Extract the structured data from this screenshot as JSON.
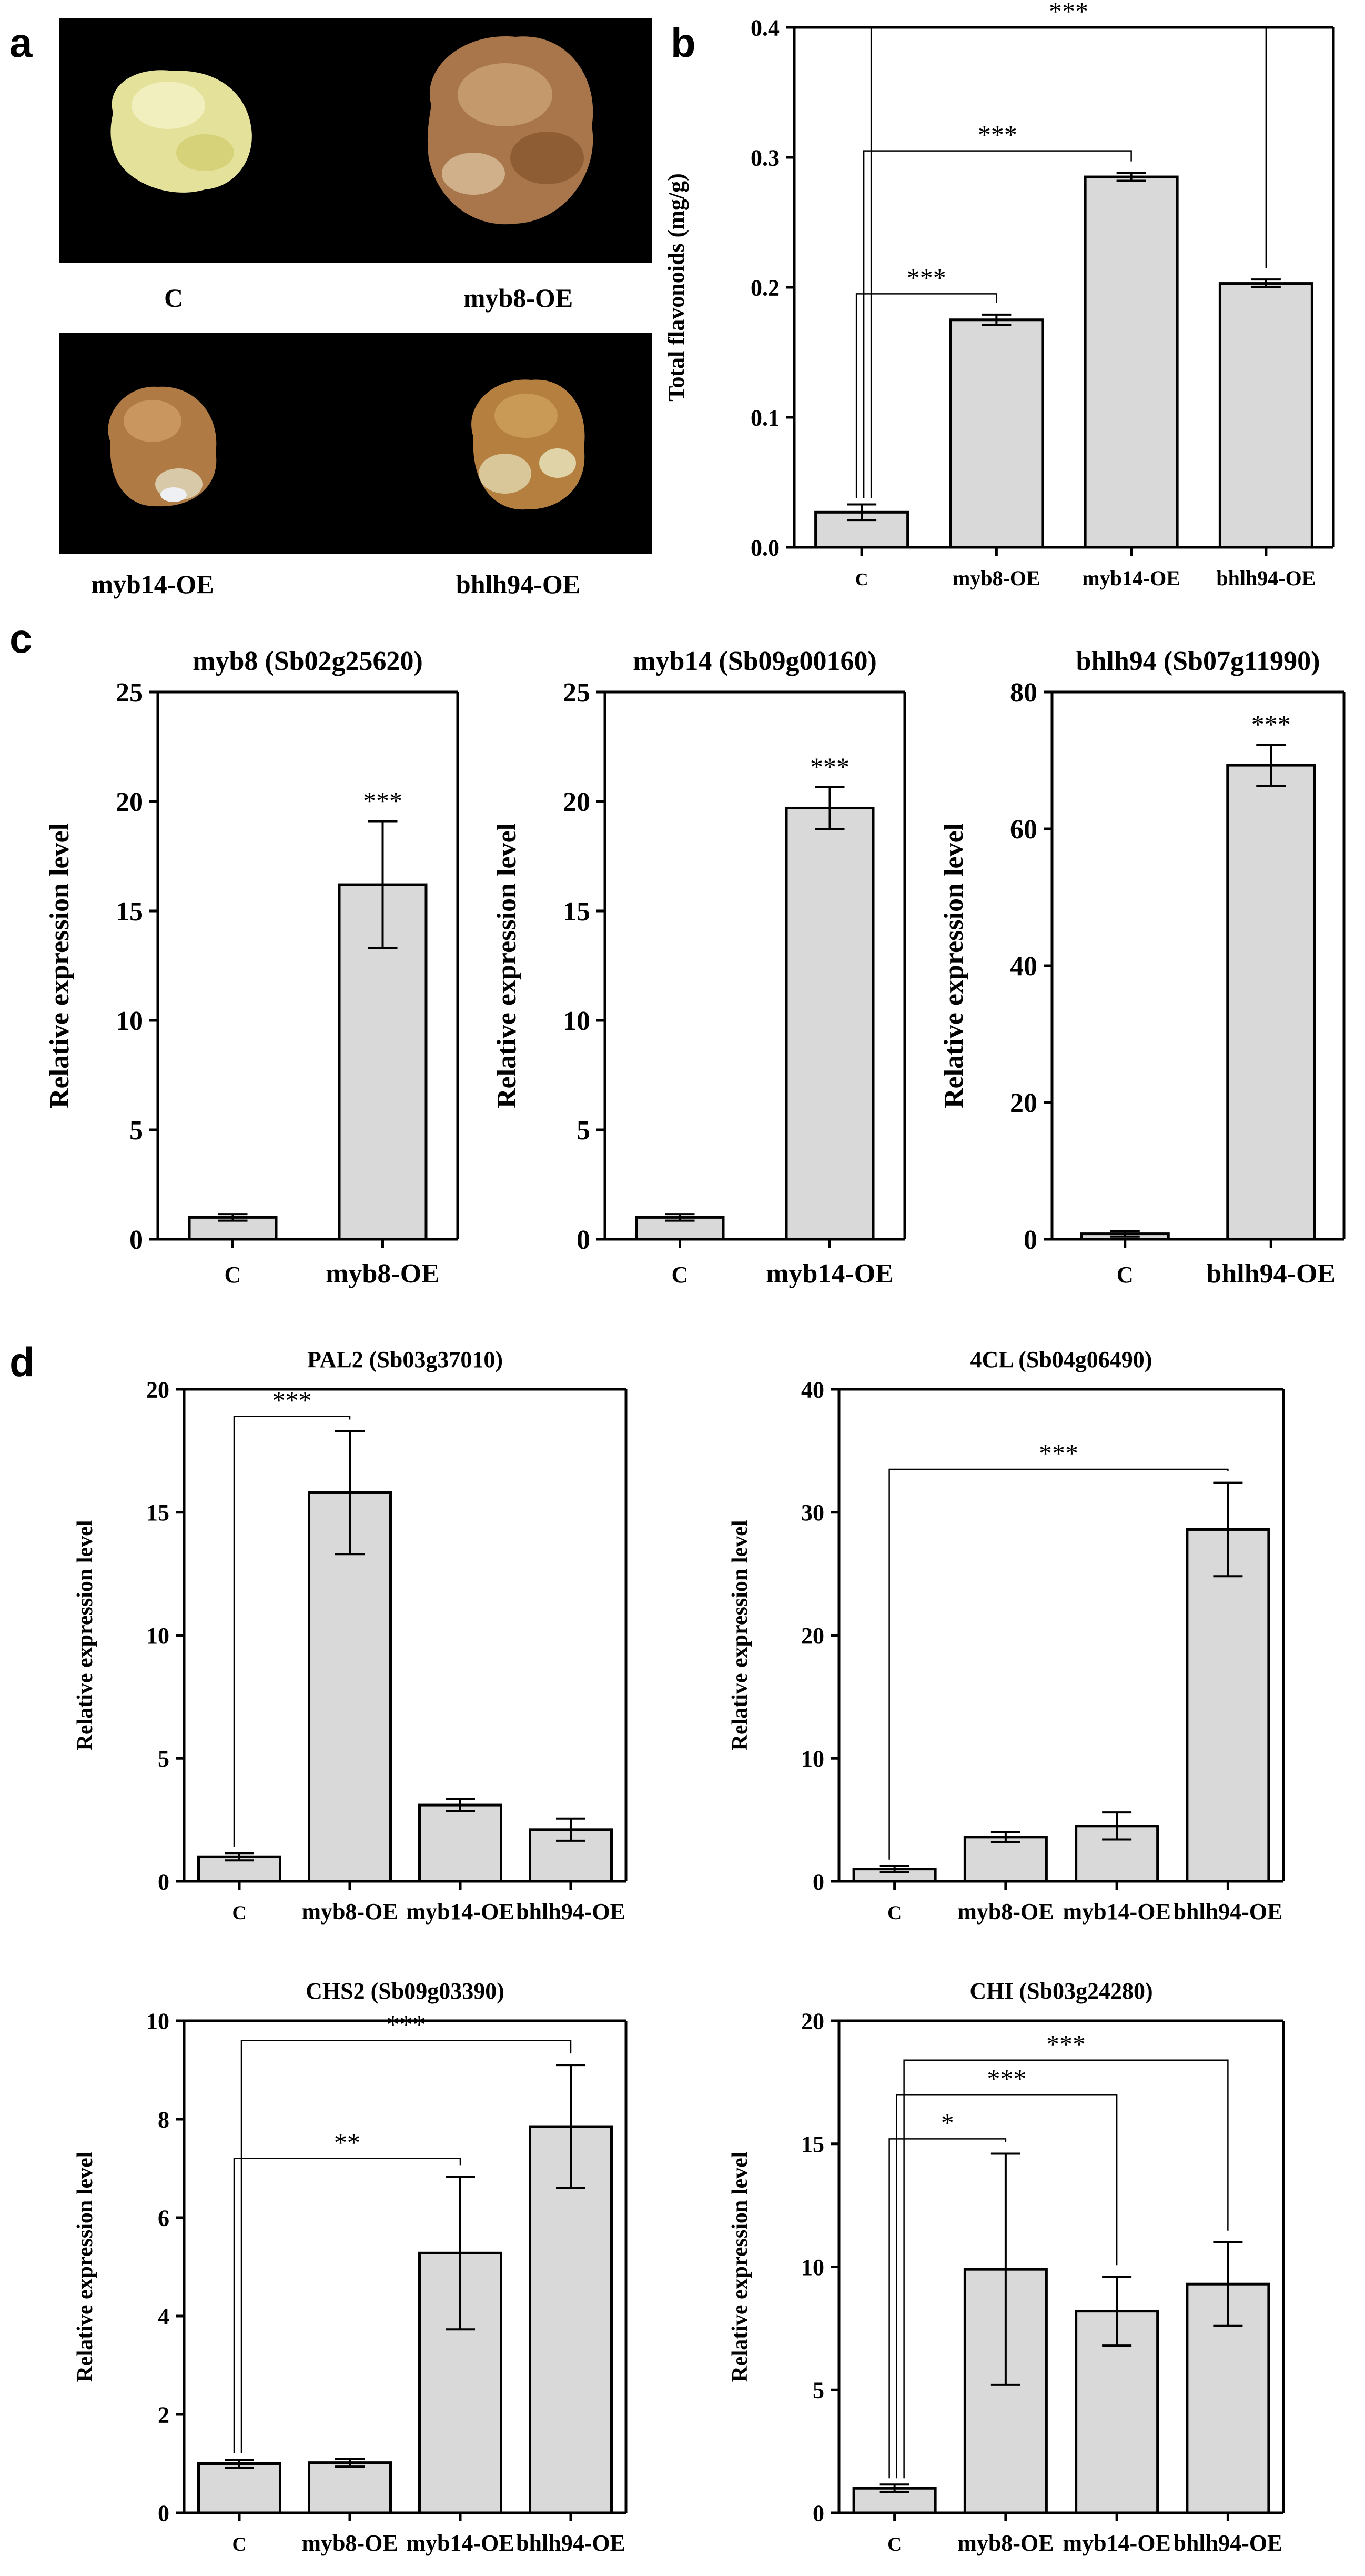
{
  "panel_labels": {
    "a": "a",
    "b": "b",
    "c": "c",
    "d": "d"
  },
  "photos": {
    "background": "#000000",
    "items": [
      {
        "label": "C",
        "callus": "pale-yellow"
      },
      {
        "label": "myb8-OE",
        "callus": "brown"
      },
      {
        "label": "myb14-OE",
        "callus": "brown"
      },
      {
        "label": "bhlh94-OE",
        "callus": "brown"
      }
    ]
  },
  "colors": {
    "bar_fill": "#d9d9d9",
    "stroke": "#000000"
  },
  "chart_data": [
    {
      "id": "b",
      "type": "bar",
      "title": "",
      "xlabel": "",
      "ylabel": "Total flavonoids (mg/g)",
      "ylim": [
        0,
        0.4
      ],
      "yticks": [
        0.0,
        0.1,
        0.2,
        0.3,
        0.4
      ],
      "ytick_labels": [
        "0.0",
        "0.1",
        "0.2",
        "0.3",
        "0.4"
      ],
      "categories": [
        "C",
        "myb8-OE",
        "myb14-OE",
        "bhlh94-OE"
      ],
      "values": [
        0.027,
        0.175,
        0.285,
        0.203
      ],
      "errors": [
        0.006,
        0.004,
        0.003,
        0.003
      ],
      "significance": [
        {
          "from": 0,
          "to": 1,
          "label": "***",
          "y": 0.195
        },
        {
          "from": 0,
          "to": 2,
          "label": "***",
          "y": 0.305
        },
        {
          "from": 0,
          "to": 3,
          "label": "***",
          "y": 0.4
        }
      ]
    },
    {
      "id": "c1",
      "type": "bar",
      "title": "myb8 (Sb02g25620)",
      "xlabel": "",
      "ylabel": "Relative expression level",
      "ylim": [
        0,
        25
      ],
      "yticks": [
        0,
        5,
        10,
        15,
        20,
        25
      ],
      "ytick_labels": [
        "0",
        "5",
        "10",
        "15",
        "20",
        "25"
      ],
      "categories": [
        "C",
        "myb8-OE"
      ],
      "values": [
        1.0,
        16.2
      ],
      "errors": [
        0.15,
        2.9
      ],
      "stars": [
        {
          "index": 1,
          "label": "***"
        }
      ]
    },
    {
      "id": "c2",
      "type": "bar",
      "title": "myb14 (Sb09g00160)",
      "xlabel": "",
      "ylabel": "Relative expression level",
      "ylim": [
        0,
        25
      ],
      "yticks": [
        0,
        5,
        10,
        15,
        20,
        25
      ],
      "ytick_labels": [
        "0",
        "5",
        "10",
        "15",
        "20",
        "25"
      ],
      "categories": [
        "C",
        "myb14-OE"
      ],
      "values": [
        1.0,
        19.7
      ],
      "errors": [
        0.15,
        0.95
      ],
      "stars": [
        {
          "index": 1,
          "label": "***"
        }
      ]
    },
    {
      "id": "c3",
      "type": "bar",
      "title": "bhlh94 (Sb07g11990)",
      "xlabel": "",
      "ylabel": "Relative expression level",
      "ylim": [
        0,
        80
      ],
      "yticks": [
        0,
        20,
        40,
        60,
        80
      ],
      "ytick_labels": [
        "0",
        "20",
        "40",
        "60",
        "80"
      ],
      "categories": [
        "C",
        "bhlh94-OE"
      ],
      "values": [
        0.8,
        69.3
      ],
      "errors": [
        0.4,
        3.0
      ],
      "stars": [
        {
          "index": 1,
          "label": "***"
        }
      ]
    },
    {
      "id": "d1",
      "type": "bar",
      "title": "PAL2 (Sb03g37010)",
      "xlabel": "",
      "ylabel": "Relative expression level",
      "ylim": [
        0,
        20
      ],
      "yticks": [
        0,
        5,
        10,
        15,
        20
      ],
      "ytick_labels": [
        "0",
        "5",
        "10",
        "15",
        "20"
      ],
      "categories": [
        "C",
        "myb8-OE",
        "myb14-OE",
        "bhlh94-OE"
      ],
      "values": [
        1.0,
        15.8,
        3.1,
        2.1
      ],
      "errors": [
        0.15,
        2.5,
        0.25,
        0.45
      ],
      "significance": [
        {
          "from": 0,
          "to": 1,
          "label": "***",
          "y": 18.9
        }
      ]
    },
    {
      "id": "d2",
      "type": "bar",
      "title": "4CL (Sb04g06490)",
      "xlabel": "",
      "ylabel": "Relative expression level",
      "ylim": [
        0,
        40
      ],
      "yticks": [
        0,
        10,
        20,
        30,
        40
      ],
      "ytick_labels": [
        "0",
        "10",
        "20",
        "30",
        "40"
      ],
      "categories": [
        "C",
        "myb8-OE",
        "myb14-OE",
        "bhlh94-OE"
      ],
      "values": [
        1.0,
        3.6,
        4.5,
        28.6
      ],
      "errors": [
        0.25,
        0.4,
        1.1,
        3.8
      ],
      "significance": [
        {
          "from": 0,
          "to": 3,
          "label": "***",
          "y": 33.5
        }
      ]
    },
    {
      "id": "d3",
      "type": "bar",
      "title": "CHS2 (Sb09g03390)",
      "xlabel": "",
      "ylabel": "Relative expression level",
      "ylim": [
        0,
        10
      ],
      "yticks": [
        0,
        2,
        4,
        6,
        8,
        10
      ],
      "ytick_labels": [
        "0",
        "2",
        "4",
        "6",
        "8",
        "10"
      ],
      "categories": [
        "C",
        "myb8-OE",
        "myb14-OE",
        "bhlh94-OE"
      ],
      "values": [
        1.0,
        1.02,
        5.28,
        7.85
      ],
      "errors": [
        0.08,
        0.08,
        1.55,
        1.25
      ],
      "significance": [
        {
          "from": 0,
          "to": 2,
          "label": "**",
          "y": 7.2
        },
        {
          "from": 0,
          "to": 3,
          "label": "***",
          "y": 9.6
        }
      ]
    },
    {
      "id": "d4",
      "type": "bar",
      "title": "CHI (Sb03g24280)",
      "xlabel": "",
      "ylabel": "Relative expression level",
      "ylim": [
        0,
        20
      ],
      "yticks": [
        0,
        5,
        10,
        15,
        20
      ],
      "ytick_labels": [
        "0",
        "5",
        "10",
        "15",
        "20"
      ],
      "categories": [
        "C",
        "myb8-OE",
        "myb14-OE",
        "bhlh94-OE"
      ],
      "values": [
        1.0,
        9.9,
        8.2,
        9.3
      ],
      "errors": [
        0.15,
        4.7,
        1.4,
        1.7
      ],
      "significance": [
        {
          "from": 0,
          "to": 1,
          "label": "*",
          "y": 15.2
        },
        {
          "from": 0,
          "to": 2,
          "label": "***",
          "y": 17.0
        },
        {
          "from": 0,
          "to": 3,
          "label": "***",
          "y": 18.4
        }
      ]
    }
  ]
}
